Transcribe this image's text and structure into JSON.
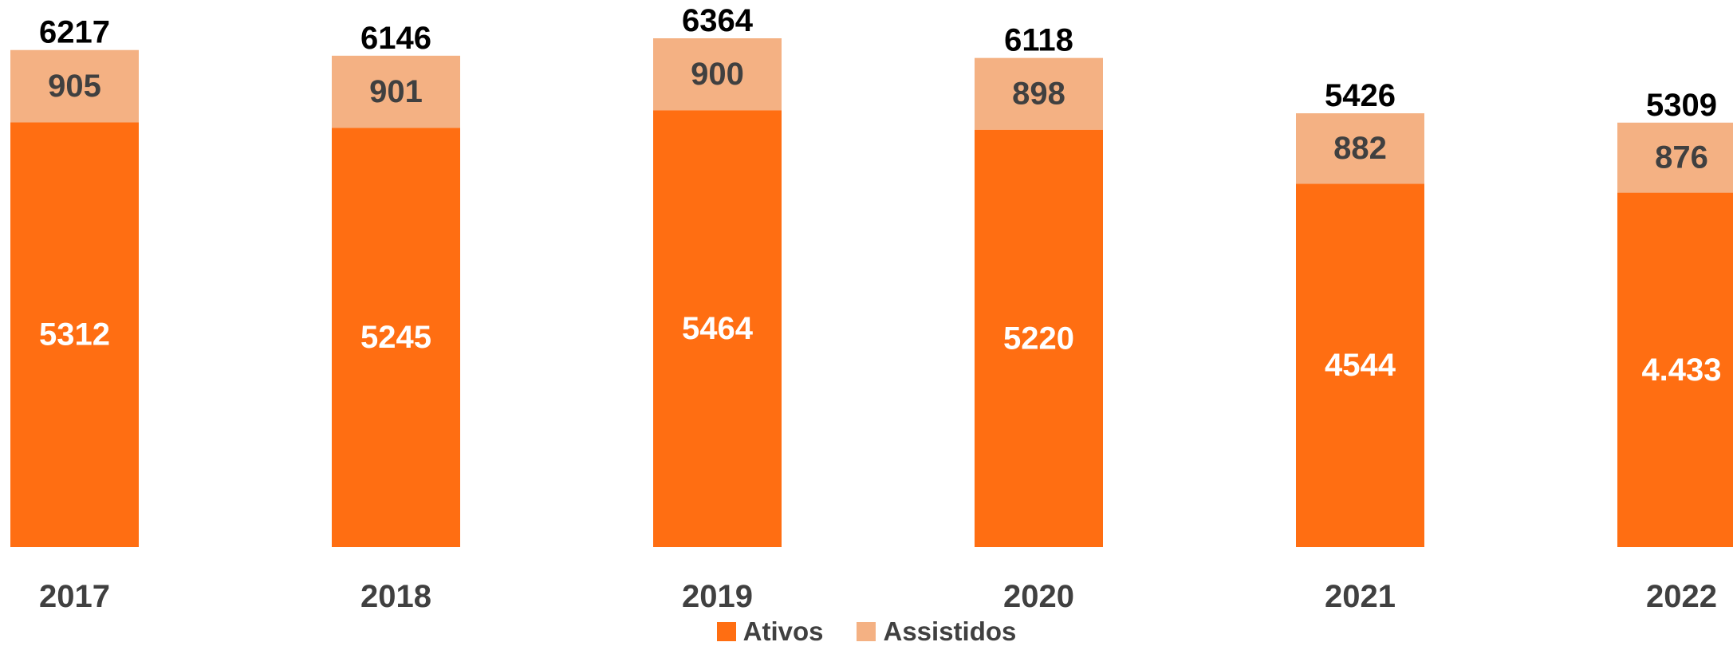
{
  "chart_data": {
    "type": "bar",
    "stacked": true,
    "categories": [
      "2017",
      "2018",
      "2019",
      "2020",
      "2021",
      "2022"
    ],
    "series": [
      {
        "name": "Ativos",
        "values": [
          5312,
          5245,
          5464,
          5220,
          4544,
          4433
        ],
        "labels": [
          "5312",
          "5245",
          "5464",
          "5220",
          "4544",
          "4.433"
        ],
        "color": "#FF6E12"
      },
      {
        "name": "Assistidos",
        "values": [
          905,
          901,
          900,
          898,
          882,
          876
        ],
        "labels": [
          "905",
          "901",
          "900",
          "898",
          "882",
          "876"
        ],
        "color": "#F4B183"
      }
    ],
    "totals": [
      "6217",
      "6146",
      "6364",
      "6118",
      "5426",
      "5309"
    ],
    "title": "",
    "xlabel": "",
    "ylabel": "",
    "ylim": [
      0,
      6364
    ],
    "grid": false,
    "legend_position": "bottom-center"
  },
  "legend": {
    "items": [
      {
        "label": "Ativos",
        "color": "#FF6E12"
      },
      {
        "label": "Assistidos",
        "color": "#F4B183"
      }
    ]
  }
}
